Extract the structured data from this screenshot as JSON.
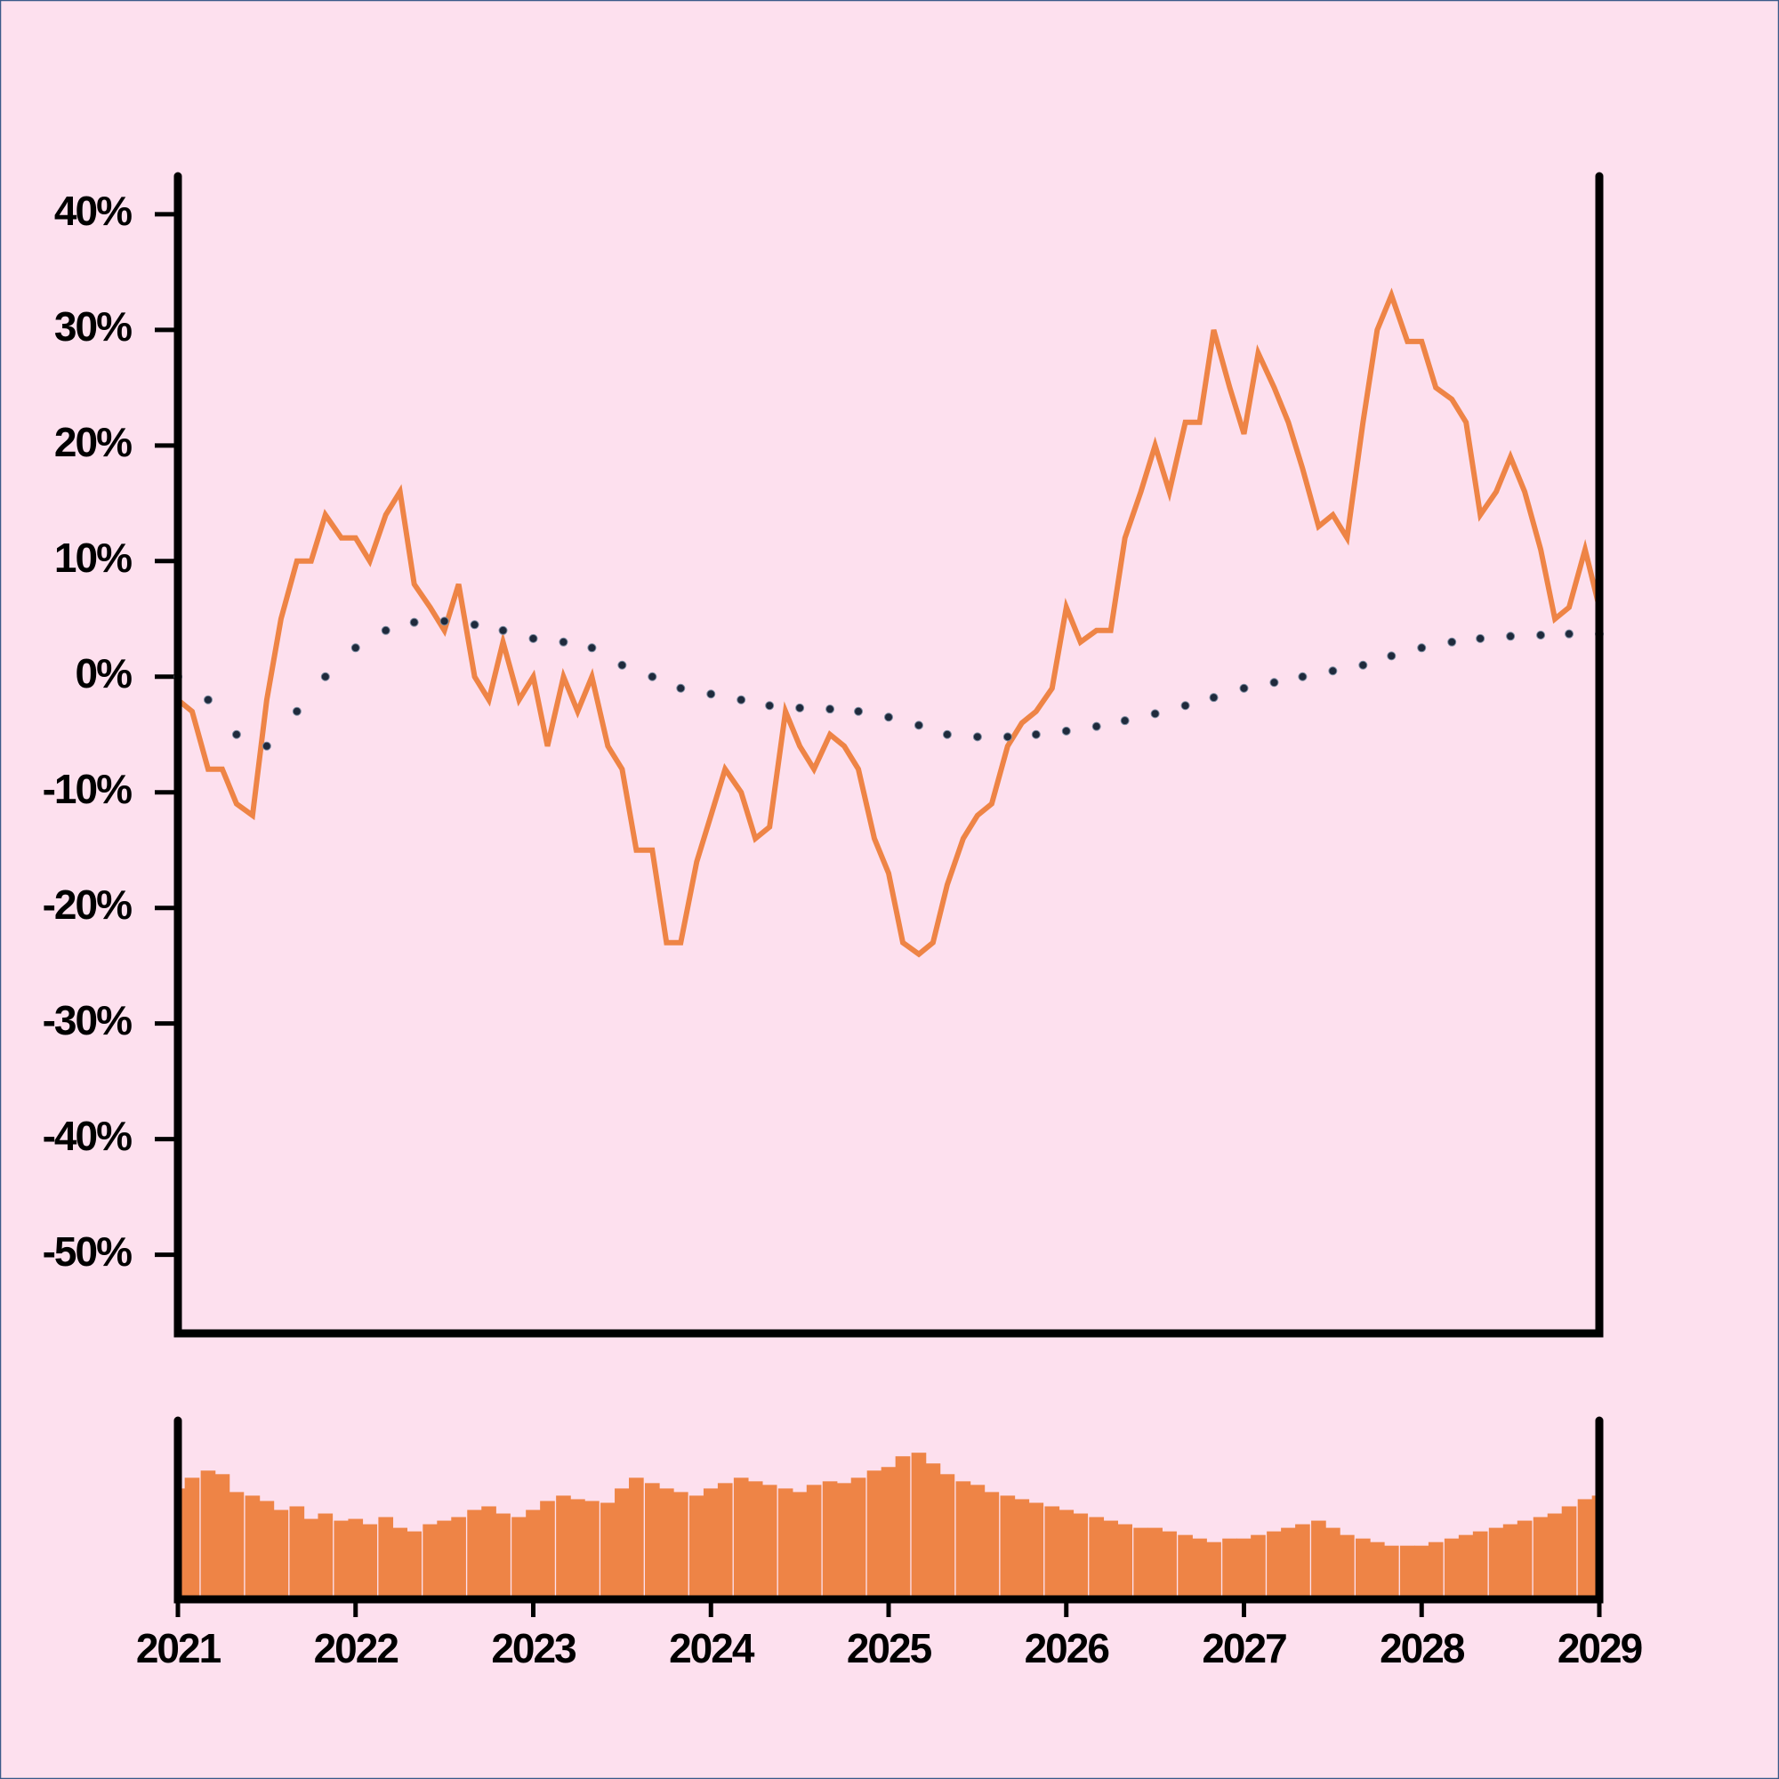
{
  "chart_data": [
    {
      "type": "line",
      "xlim": [
        2021,
        2029
      ],
      "ylim": [
        -56.8,
        43.3
      ],
      "yticks": [
        {
          "value": 40,
          "label": "40%"
        },
        {
          "value": 30,
          "label": "30%"
        },
        {
          "value": 20,
          "label": "20%"
        },
        {
          "value": 10,
          "label": "10%"
        },
        {
          "value": 0,
          "label": "0%"
        },
        {
          "value": -10,
          "label": "-10%"
        },
        {
          "value": -20,
          "label": "-20%"
        },
        {
          "value": -30,
          "label": "-30%"
        },
        {
          "value": -40,
          "label": "-40%"
        },
        {
          "value": -50,
          "label": "-50%"
        }
      ],
      "series": [
        {
          "color": "#ee8446",
          "style": "solid",
          "x": [
            2021.0,
            2021.08,
            2021.17,
            2021.25,
            2021.33,
            2021.42,
            2021.5,
            2021.58,
            2021.67,
            2021.75,
            2021.83,
            2021.92,
            2022.0,
            2022.08,
            2022.17,
            2022.25,
            2022.33,
            2022.42,
            2022.5,
            2022.58,
            2022.67,
            2022.75,
            2022.83,
            2022.92,
            2023.0,
            2023.08,
            2023.17,
            2023.25,
            2023.33,
            2023.42,
            2023.5,
            2023.58,
            2023.67,
            2023.75,
            2023.83,
            2023.92,
            2024.0,
            2024.08,
            2024.17,
            2024.25,
            2024.33,
            2024.42,
            2024.5,
            2024.58,
            2024.67,
            2024.75,
            2024.83,
            2024.92,
            2025.0,
            2025.08,
            2025.17,
            2025.25,
            2025.33,
            2025.42,
            2025.5,
            2025.58,
            2025.67,
            2025.75,
            2025.83,
            2025.92,
            2026.0,
            2026.08,
            2026.17,
            2026.25,
            2026.33,
            2026.42,
            2026.5,
            2026.58,
            2026.67,
            2026.75,
            2026.83,
            2026.92,
            2027.0,
            2027.08,
            2027.17,
            2027.25,
            2027.33,
            2027.42,
            2027.5,
            2027.58,
            2027.67,
            2027.75,
            2027.83,
            2027.92,
            2028.0,
            2028.08,
            2028.17,
            2028.25,
            2028.33,
            2028.42,
            2028.5,
            2028.58,
            2028.67,
            2028.75,
            2028.83,
            2028.92,
            2029.0
          ],
          "values": [
            -2,
            -3,
            -8,
            -8,
            -11,
            -12,
            -2,
            5,
            10,
            10,
            14,
            12,
            12,
            10,
            14,
            16,
            8,
            6,
            4,
            8,
            0,
            -2,
            3,
            -2,
            0,
            -6,
            0,
            -3,
            0,
            -6,
            -8,
            -15,
            -15,
            -23,
            -23,
            -16,
            -12,
            -8,
            -10,
            -14,
            -13,
            -3,
            -6,
            -8,
            -5,
            -6,
            -8,
            -14,
            -17,
            -23,
            -24,
            -23,
            -18,
            -14,
            -12,
            -11,
            -6,
            -4,
            -3,
            -1,
            6,
            3,
            4,
            4,
            12,
            16,
            20,
            16,
            22,
            22,
            30,
            25,
            21,
            28,
            25,
            22,
            18,
            13,
            14,
            12,
            22,
            30,
            33,
            29,
            29,
            25,
            24,
            22,
            14,
            16,
            19,
            16,
            11,
            5,
            6,
            11,
            6
          ]
        },
        {
          "color": "#1f2a3c",
          "style": "dotted",
          "x": [
            2021.0,
            2021.17,
            2021.33,
            2021.5,
            2021.67,
            2021.83,
            2022.0,
            2022.17,
            2022.33,
            2022.5,
            2022.67,
            2022.83,
            2023.0,
            2023.17,
            2023.33,
            2023.5,
            2023.67,
            2023.83,
            2024.0,
            2024.17,
            2024.33,
            2024.5,
            2024.67,
            2024.83,
            2025.0,
            2025.17,
            2025.33,
            2025.5,
            2025.67,
            2025.83,
            2026.0,
            2026.17,
            2026.33,
            2026.5,
            2026.67,
            2026.83,
            2027.0,
            2027.17,
            2027.33,
            2027.5,
            2027.67,
            2027.83,
            2028.0,
            2028.17,
            2028.33,
            2028.5,
            2028.67,
            2028.83,
            2029.0
          ],
          "values": [
            0,
            -2,
            -5,
            -6,
            -3,
            0,
            2.5,
            4,
            4.7,
            4.8,
            4.5,
            4,
            3.3,
            3,
            2.5,
            1,
            0,
            -1,
            -1.5,
            -2,
            -2.5,
            -2.7,
            -2.8,
            -3,
            -3.5,
            -4.2,
            -5,
            -5.2,
            -5.2,
            -5,
            -4.7,
            -4.3,
            -3.8,
            -3.2,
            -2.5,
            -1.8,
            -1,
            -0.5,
            0,
            0.5,
            1,
            1.8,
            2.5,
            3,
            3.3,
            3.5,
            3.6,
            3.7,
            3.7
          ]
        }
      ]
    },
    {
      "type": "bar",
      "color": "#ee8446",
      "xlim": [
        2021,
        2029
      ],
      "xticks": [
        2021,
        2022,
        2023,
        2024,
        2025,
        2026,
        2027,
        2028,
        2029
      ],
      "ylim": [
        0,
        100
      ],
      "x": [
        2021.0,
        2021.08,
        2021.17,
        2021.25,
        2021.33,
        2021.42,
        2021.5,
        2021.58,
        2021.67,
        2021.75,
        2021.83,
        2021.92,
        2022.0,
        2022.08,
        2022.17,
        2022.25,
        2022.33,
        2022.42,
        2022.5,
        2022.58,
        2022.67,
        2022.75,
        2022.83,
        2022.92,
        2023.0,
        2023.08,
        2023.17,
        2023.25,
        2023.33,
        2023.42,
        2023.5,
        2023.58,
        2023.67,
        2023.75,
        2023.83,
        2023.92,
        2024.0,
        2024.08,
        2024.17,
        2024.25,
        2024.33,
        2024.42,
        2024.5,
        2024.58,
        2024.67,
        2024.75,
        2024.83,
        2024.92,
        2025.0,
        2025.08,
        2025.17,
        2025.25,
        2025.33,
        2025.42,
        2025.5,
        2025.58,
        2025.67,
        2025.75,
        2025.83,
        2025.92,
        2026.0,
        2026.08,
        2026.17,
        2026.25,
        2026.33,
        2026.42,
        2026.5,
        2026.58,
        2026.67,
        2026.75,
        2026.83,
        2026.92,
        2027.0,
        2027.08,
        2027.17,
        2027.25,
        2027.33,
        2027.42,
        2027.5,
        2027.58,
        2027.67,
        2027.75,
        2027.83,
        2027.92,
        2028.0,
        2028.08,
        2028.17,
        2028.25,
        2028.33,
        2028.42,
        2028.5,
        2028.58,
        2028.67,
        2028.75,
        2028.83,
        2028.92,
        2029.0
      ],
      "values": [
        62,
        68,
        72,
        70,
        60,
        58,
        55,
        50,
        52,
        45,
        48,
        44,
        45,
        42,
        46,
        40,
        38,
        42,
        44,
        46,
        50,
        52,
        48,
        46,
        50,
        55,
        58,
        56,
        55,
        54,
        62,
        68,
        65,
        62,
        60,
        58,
        62,
        65,
        68,
        66,
        64,
        62,
        60,
        64,
        66,
        65,
        68,
        72,
        74,
        80,
        82,
        76,
        70,
        66,
        64,
        60,
        58,
        56,
        54,
        52,
        50,
        48,
        46,
        44,
        42,
        40,
        40,
        38,
        36,
        34,
        32,
        34,
        34,
        36,
        38,
        40,
        42,
        44,
        40,
        36,
        34,
        32,
        30,
        30,
        30,
        32,
        34,
        36,
        38,
        40,
        42,
        44,
        46,
        48,
        52,
        56,
        58
      ]
    }
  ]
}
